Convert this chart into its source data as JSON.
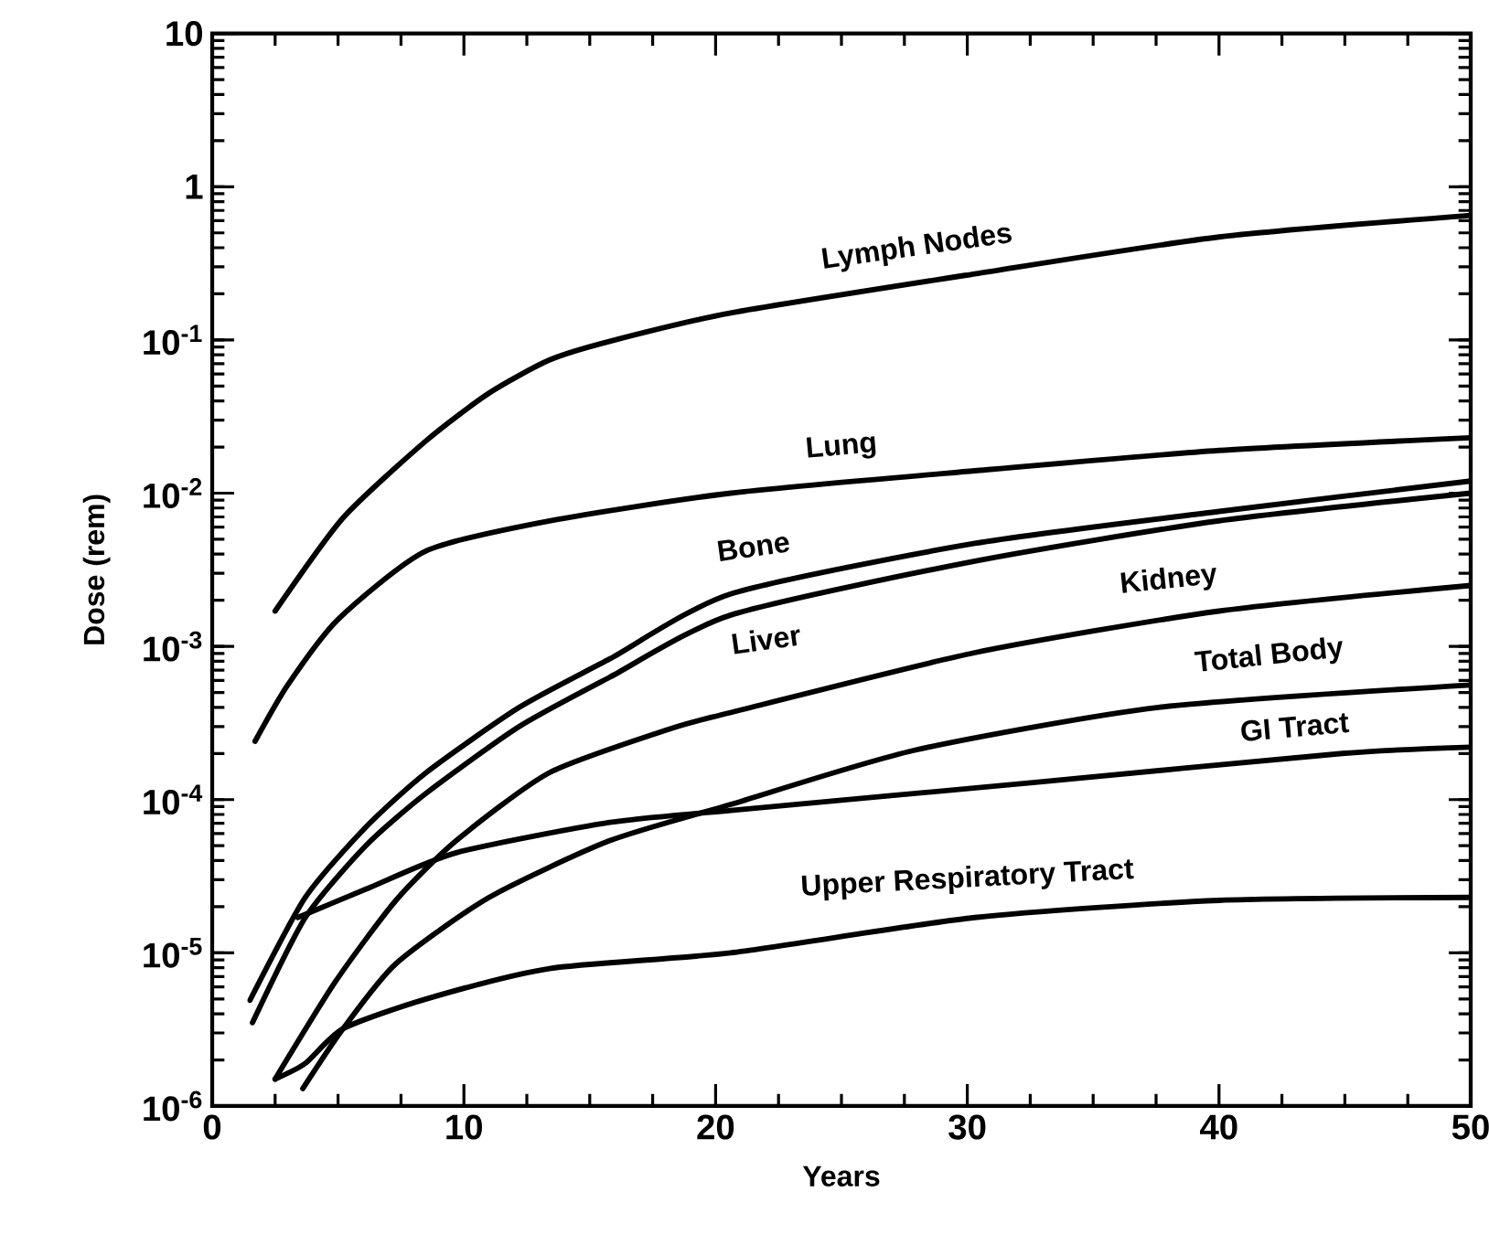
{
  "chart_data": {
    "type": "line",
    "xlabel": "Years",
    "ylabel": "Dose (rem)",
    "log": "y",
    "xlim": [
      0,
      50
    ],
    "xticks": [
      0,
      10,
      20,
      30,
      40,
      50
    ],
    "ylim": [
      1e-06,
      10
    ],
    "yticks": [
      {
        "value": 1e-06,
        "label": "10$^{-6}$"
      },
      {
        "value": 1e-05,
        "label": "10$^{-5}$"
      },
      {
        "value": 0.0001,
        "label": "10$^{-4}$"
      },
      {
        "value": 0.001,
        "label": "10$^{-3}$"
      },
      {
        "value": 0.01,
        "label": "10$^{-2}$"
      },
      {
        "value": 0.1,
        "label": "10$^{-1}$"
      },
      1,
      10
    ],
    "grid": false,
    "legend": false,
    "marker": "none",
    "line_style": "solid",
    "series": [
      {
        "name": "Lymph Nodes",
        "color": "#000000",
        "x": [
          2.5,
          5.2,
          8.5,
          11,
          13.4,
          15.8,
          20.6,
          30.3,
          40,
          50
        ],
        "values": [
          0.0017,
          0.0069,
          0.022,
          0.045,
          0.074,
          0.098,
          0.15,
          0.27,
          0.47,
          0.65
        ]
      },
      {
        "name": "Lung",
        "color": "#000000",
        "x": [
          1.7,
          3,
          5,
          8.5,
          13.4,
          20.6,
          30.3,
          40,
          50
        ],
        "values": [
          0.00024,
          0.00056,
          0.0015,
          0.0042,
          0.0066,
          0.01,
          0.014,
          0.019,
          0.023
        ]
      },
      {
        "name": "Bone",
        "color": "#000000",
        "x": [
          1.5,
          3.7,
          6.1,
          8.5,
          12.2,
          15.8,
          20.6,
          30.3,
          40,
          50
        ],
        "values": [
          4.9e-06,
          2.3e-05,
          6.6e-05,
          0.00015,
          0.0004,
          0.00083,
          0.0022,
          0.0047,
          0.0076,
          0.012
        ]
      },
      {
        "name": "Liver",
        "color": "#000000",
        "x": [
          1.6,
          3.7,
          6.1,
          8.5,
          12.2,
          15.8,
          20.6,
          30.3,
          40,
          50
        ],
        "values": [
          3.5e-06,
          1.7e-05,
          5e-05,
          0.00011,
          0.0003,
          0.00063,
          0.0016,
          0.0036,
          0.0066,
          0.01
        ]
      },
      {
        "name": "Kidney",
        "color": "#000000",
        "x": [
          2.5,
          4.9,
          7.3,
          9.7,
          13.4,
          18.2,
          20.6,
          30.3,
          40,
          50
        ],
        "values": [
          1.5e-06,
          6.5e-06,
          2.2e-05,
          5.4e-05,
          0.00015,
          0.00029,
          0.00037,
          0.00091,
          0.0017,
          0.0025
        ]
      },
      {
        "name": "Total Body",
        "color": "#000000",
        "x": [
          3.6,
          5.2,
          7.3,
          11,
          15.8,
          20.6,
          27.9,
          37.6,
          50
        ],
        "values": [
          1.3e-06,
          3.2e-06,
          8.5e-06,
          2.3e-05,
          5.4e-05,
          9.3e-05,
          0.00021,
          0.0004,
          0.00056
        ]
      },
      {
        "name": "GI Tract",
        "color": "#000000",
        "x": [
          3.4,
          6.1,
          9.7,
          15.8,
          20.6,
          32.8,
          44.9,
          50
        ],
        "values": [
          1.7e-05,
          2.6e-05,
          4.5e-05,
          7.1e-05,
          8.5e-05,
          0.00013,
          0.0002,
          0.00022
        ]
      },
      {
        "name": "Upper Respiratory Tract",
        "color": "#000000",
        "x": [
          2.5,
          3.7,
          5.2,
          8.5,
          13.4,
          20.6,
          30.3,
          40,
          50
        ],
        "values": [
          1.5e-06,
          1.9e-06,
          3.2e-06,
          5e-06,
          7.9e-06,
          1e-05,
          1.7e-05,
          2.2e-05,
          2.3e-05
        ]
      }
    ]
  }
}
